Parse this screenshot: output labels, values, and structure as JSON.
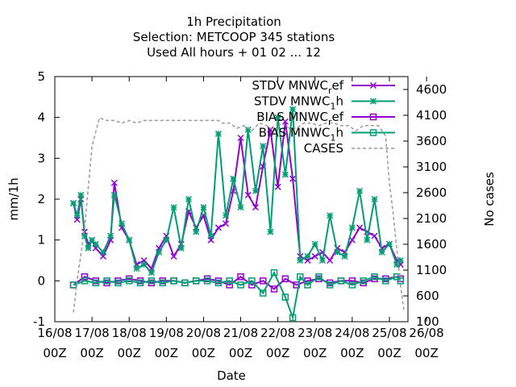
{
  "chart_data": {
    "type": "line",
    "title_lines": [
      "1h Precipitation",
      "Selection: METCOOP    345 stations",
      "Used  All hours  + 01 02 ... 12"
    ],
    "xlabel": "Date",
    "ylabel": "mm/1h",
    "y2label": "No cases",
    "xlim": [
      0,
      9.5
    ],
    "ylim": [
      -1,
      5
    ],
    "y2lim": [
      100,
      4850
    ],
    "x_tick_labels": [
      [
        "16/08",
        "00Z"
      ],
      [
        "17/08",
        "00Z"
      ],
      [
        "18/08",
        "00Z"
      ],
      [
        "19/08",
        "00Z"
      ],
      [
        "20/08",
        "00Z"
      ],
      [
        "21/08",
        "00Z"
      ],
      [
        "22/08",
        "00Z"
      ],
      [
        "23/08",
        "00Z"
      ],
      [
        "24/08",
        "00Z"
      ],
      [
        "25/08",
        "00Z"
      ],
      [
        "26/08",
        "00Z"
      ]
    ],
    "y_ticks": [
      -1,
      0,
      1,
      2,
      3,
      4,
      5
    ],
    "y2_ticks": [
      100,
      600,
      1100,
      1600,
      2100,
      2600,
      3100,
      3600,
      4100,
      4600
    ],
    "legend_position": "top-right",
    "series": [
      {
        "name": "STDV MNWC_ref",
        "legend": "STDV MNWC",
        "sub": "r",
        "tail": "ef",
        "color": "#9400d3",
        "marker": "x",
        "axis": "y",
        "x": [
          0.5,
          0.6,
          0.7,
          0.8,
          0.9,
          1.0,
          1.1,
          1.3,
          1.5,
          1.6,
          1.8,
          2.0,
          2.2,
          2.4,
          2.6,
          2.8,
          3.0,
          3.2,
          3.4,
          3.6,
          3.8,
          4.0,
          4.2,
          4.4,
          4.6,
          4.8,
          5.0,
          5.2,
          5.4,
          5.6,
          5.8,
          6.0,
          6.2,
          6.4,
          6.6,
          6.8,
          7.0,
          7.2,
          7.4,
          7.6,
          7.8,
          8.0,
          8.2,
          8.4,
          8.6,
          8.8,
          9.0,
          9.2,
          9.3
        ],
        "y": [
          1.9,
          1.5,
          2.0,
          1.2,
          0.9,
          1.0,
          0.8,
          0.6,
          1.0,
          2.4,
          1.3,
          1.0,
          0.4,
          0.5,
          0.3,
          0.8,
          1.1,
          0.6,
          0.9,
          1.7,
          1.3,
          1.6,
          1.0,
          1.3,
          1.4,
          2.2,
          3.5,
          2.1,
          1.8,
          2.8,
          3.7,
          2.3,
          3.9,
          2.5,
          0.6,
          0.5,
          0.6,
          0.7,
          0.5,
          0.8,
          0.7,
          1.0,
          1.3,
          1.2,
          1.1,
          0.8,
          0.9,
          0.5,
          0.4
        ]
      },
      {
        "name": "STDV MNWC_1h",
        "legend": "STDV MNWC",
        "sub": "1",
        "tail": "h",
        "color": "#009e73",
        "marker": "star",
        "axis": "y",
        "x": [
          0.5,
          0.6,
          0.7,
          0.8,
          0.9,
          1.0,
          1.1,
          1.3,
          1.5,
          1.6,
          1.8,
          2.0,
          2.2,
          2.4,
          2.6,
          2.8,
          3.0,
          3.2,
          3.4,
          3.6,
          3.8,
          4.0,
          4.2,
          4.4,
          4.6,
          4.8,
          5.0,
          5.2,
          5.4,
          5.6,
          5.8,
          6.0,
          6.2,
          6.4,
          6.6,
          6.8,
          7.0,
          7.2,
          7.4,
          7.6,
          7.8,
          8.0,
          8.2,
          8.4,
          8.6,
          8.8,
          9.0,
          9.2,
          9.3
        ],
        "y": [
          1.9,
          1.6,
          2.1,
          1.1,
          0.8,
          1.0,
          0.9,
          0.7,
          1.1,
          2.1,
          1.4,
          1.0,
          0.3,
          0.4,
          0.2,
          0.7,
          1.0,
          1.8,
          0.8,
          2.0,
          1.2,
          1.8,
          1.1,
          3.6,
          1.6,
          2.5,
          1.8,
          3.7,
          2.2,
          3.3,
          1.2,
          4.0,
          2.6,
          4.2,
          0.5,
          0.6,
          0.9,
          0.5,
          1.6,
          0.7,
          0.6,
          1.3,
          2.2,
          1.0,
          2.0,
          0.7,
          0.9,
          0.4,
          0.5
        ]
      },
      {
        "name": "BIAS MNWC_ref",
        "legend": "BIAS MNWC",
        "sub": "r",
        "tail": "ef",
        "color": "#9400d3",
        "marker": "square",
        "axis": "y",
        "x": [
          0.5,
          0.8,
          1.1,
          1.4,
          1.7,
          2.0,
          2.3,
          2.6,
          2.9,
          3.2,
          3.5,
          3.8,
          4.1,
          4.4,
          4.7,
          5.0,
          5.3,
          5.6,
          5.9,
          6.2,
          6.5,
          6.8,
          7.1,
          7.4,
          7.7,
          8.0,
          8.3,
          8.6,
          8.9,
          9.2,
          9.3
        ],
        "y": [
          -0.1,
          0.1,
          0.0,
          -0.05,
          0.0,
          0.05,
          0.0,
          -0.05,
          0.0,
          0.0,
          -0.05,
          0.0,
          0.05,
          0.0,
          -0.1,
          0.1,
          -0.1,
          0.0,
          -0.2,
          0.05,
          -0.1,
          0.0,
          0.05,
          -0.05,
          0.0,
          0.0,
          -0.05,
          0.05,
          0.05,
          0.1,
          0.05
        ]
      },
      {
        "name": "BIAS MNWC_1h",
        "legend": "BIAS MNWC",
        "sub": "1",
        "tail": "h",
        "color": "#009e73",
        "marker": "square",
        "axis": "y",
        "x": [
          0.5,
          0.8,
          1.1,
          1.4,
          1.7,
          2.0,
          2.3,
          2.6,
          2.9,
          3.2,
          3.5,
          3.8,
          4.1,
          4.4,
          4.7,
          5.0,
          5.3,
          5.6,
          5.9,
          6.2,
          6.4,
          6.6,
          6.8,
          7.1,
          7.4,
          7.7,
          8.0,
          8.3,
          8.6,
          8.9,
          9.2,
          9.3
        ],
        "y": [
          -0.1,
          0.0,
          -0.05,
          0.0,
          -0.05,
          0.0,
          -0.05,
          0.0,
          -0.05,
          0.0,
          -0.05,
          0.0,
          0.0,
          -0.05,
          0.0,
          -0.1,
          0.0,
          -0.3,
          0.2,
          -0.4,
          -0.9,
          0.1,
          -0.1,
          0.1,
          -0.1,
          0.0,
          -0.1,
          0.0,
          0.1,
          0.0,
          0.1,
          0.0
        ]
      },
      {
        "name": "CASES",
        "legend": "CASES",
        "color": "#999999",
        "marker": "none",
        "dashed": true,
        "axis": "y2",
        "x": [
          0.5,
          0.6,
          0.8,
          1.0,
          1.2,
          1.4,
          1.6,
          1.8,
          2.0,
          2.2,
          2.4,
          2.6,
          2.8,
          3.0,
          3.2,
          3.4,
          3.6,
          3.8,
          4.0,
          4.2,
          4.4,
          4.5,
          4.7,
          4.9,
          5.1,
          5.3,
          5.5,
          5.7,
          5.9,
          6.1,
          6.3,
          6.5,
          6.7,
          6.9,
          7.1,
          7.3,
          7.5,
          7.7,
          7.9,
          8.1,
          8.3,
          8.5,
          8.7,
          8.9,
          9.0,
          9.1,
          9.2,
          9.3,
          9.4
        ],
        "y": [
          280,
          900,
          1900,
          3500,
          4050,
          4000,
          4000,
          3950,
          4000,
          3950,
          4000,
          4000,
          4000,
          4000,
          4000,
          4000,
          4000,
          4000,
          4000,
          4000,
          4000,
          3950,
          3950,
          3850,
          3900,
          3800,
          3950,
          3900,
          3800,
          3950,
          3850,
          3850,
          3950,
          3950,
          3900,
          3950,
          3950,
          3900,
          3900,
          3800,
          3900,
          3900,
          3900,
          3700,
          2800,
          2200,
          1500,
          800,
          280
        ]
      }
    ]
  }
}
